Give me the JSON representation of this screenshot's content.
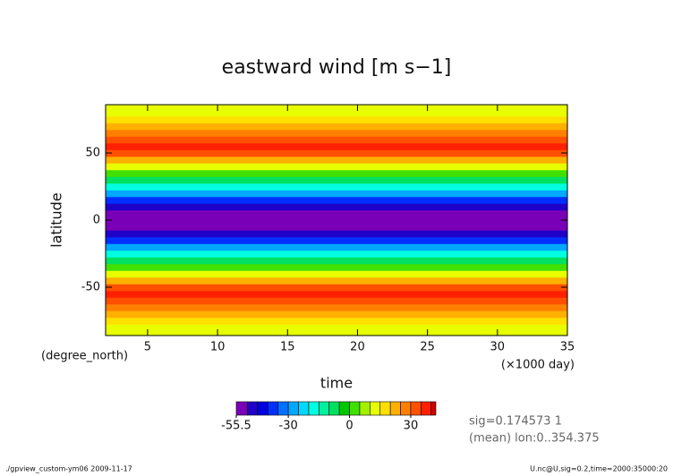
{
  "chart_data": {
    "type": "heatmap",
    "title": "eastward wind [m s−1]",
    "x_label": "time",
    "x_unit": "(×1000 day)",
    "y_label": "latitude",
    "y_unit": "(degree_north)",
    "xlim": [
      2,
      35
    ],
    "xticks": [
      5,
      10,
      15,
      20,
      25,
      30,
      35
    ],
    "ylim": [
      -86,
      86
    ],
    "yticks": [
      -50,
      0,
      50
    ],
    "latitudes": [
      -85,
      -80,
      -75,
      -70,
      -65,
      -60,
      -55,
      -50,
      -45,
      -40,
      -35,
      -30,
      -25,
      -20,
      -15,
      -10,
      -5,
      0,
      5,
      10,
      15,
      20,
      25,
      30,
      35,
      40,
      45,
      50,
      55,
      60,
      65,
      70,
      75,
      80,
      85
    ],
    "values": [
      12,
      14,
      17,
      22,
      27,
      33,
      36,
      30,
      20,
      10,
      2,
      -8,
      -18,
      -28,
      -38,
      -46,
      -51,
      -53,
      -51,
      -46,
      -38,
      -28,
      -18,
      -8,
      2,
      10,
      20,
      30,
      36,
      33,
      27,
      22,
      17,
      14,
      12
    ],
    "colorbar": {
      "levels": [
        -55.5,
        -50,
        -45,
        -40,
        -35,
        -30,
        -25,
        -20,
        -15,
        -10,
        -5,
        0,
        5,
        10,
        15,
        20,
        25,
        30,
        35,
        40,
        42.3
      ],
      "colors": [
        "#7a00b8",
        "#2000c8",
        "#0000e0",
        "#0030ff",
        "#0070ff",
        "#00a8ff",
        "#00d8ff",
        "#00ffe0",
        "#00f0a0",
        "#00e060",
        "#00c800",
        "#40e000",
        "#a0f000",
        "#e8ff00",
        "#ffe000",
        "#ffb000",
        "#ff8000",
        "#ff5000",
        "#ff2000",
        "#d00000"
      ],
      "ticks": [
        -55.5,
        -30,
        0,
        30
      ]
    },
    "annotations": [
      "sig=0.174573 1",
      "(mean) lon:0..354.375"
    ],
    "footer_left": "./gpview_custom-ym06  2009-11-17",
    "footer_right": "U.nc@U,sig=0.2,time=2000:35000:20"
  }
}
